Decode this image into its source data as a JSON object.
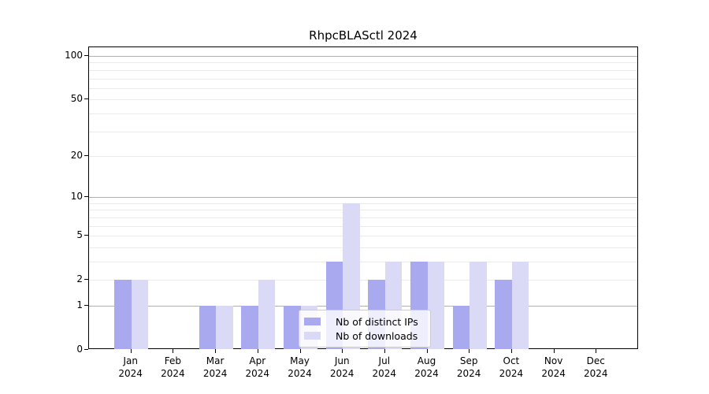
{
  "figure": {
    "title": "RhpcBLASctl 2024"
  },
  "chart_data": {
    "type": "bar",
    "title": "RhpcBLASctl 2024",
    "x_axis": {
      "months": [
        "Jan",
        "Feb",
        "Mar",
        "Apr",
        "May",
        "Jun",
        "Jul",
        "Aug",
        "Sep",
        "Oct",
        "Nov",
        "Dec"
      ],
      "year": "2024",
      "categories": [
        "Jan 2024",
        "Feb 2024",
        "Mar 2024",
        "Apr 2024",
        "May 2024",
        "Jun 2024",
        "Jul 2024",
        "Aug 2024",
        "Sep 2024",
        "Oct 2024",
        "Nov 2024",
        "Dec 2024"
      ]
    },
    "y_axis": {
      "scale": "log1p",
      "ticks": [
        0,
        1,
        2,
        5,
        10,
        20,
        50,
        100
      ],
      "major_gridlines": [
        1,
        10,
        100
      ],
      "minor_gridlines": [
        2,
        3,
        4,
        5,
        6,
        7,
        8,
        9,
        20,
        30,
        40,
        50,
        60,
        70,
        80,
        90
      ],
      "ylim": [
        0,
        115
      ],
      "grid": true
    },
    "series": [
      {
        "name": "Nb of distinct IPs",
        "slug": "distinct-ips",
        "color": "#a9a9f0",
        "values": [
          2,
          0,
          1,
          1,
          1,
          3,
          2,
          3,
          1,
          2,
          0,
          0
        ]
      },
      {
        "name": "Nb of downloads",
        "slug": "downloads",
        "color": "#dadaf6",
        "values": [
          2,
          0,
          1,
          2,
          1,
          9,
          3,
          3,
          3,
          3,
          0,
          0
        ]
      }
    ],
    "legend": {
      "position": "inside-bottom-left-of-center"
    }
  },
  "colors": {
    "distinct_ips": "#a9a9f0",
    "downloads": "#dadaf6",
    "grid_major": "#b0b0b0",
    "grid_minor": "#ebebeb",
    "spine": "#000000",
    "background": "#ffffff",
    "legend_border": "#cccccc"
  }
}
